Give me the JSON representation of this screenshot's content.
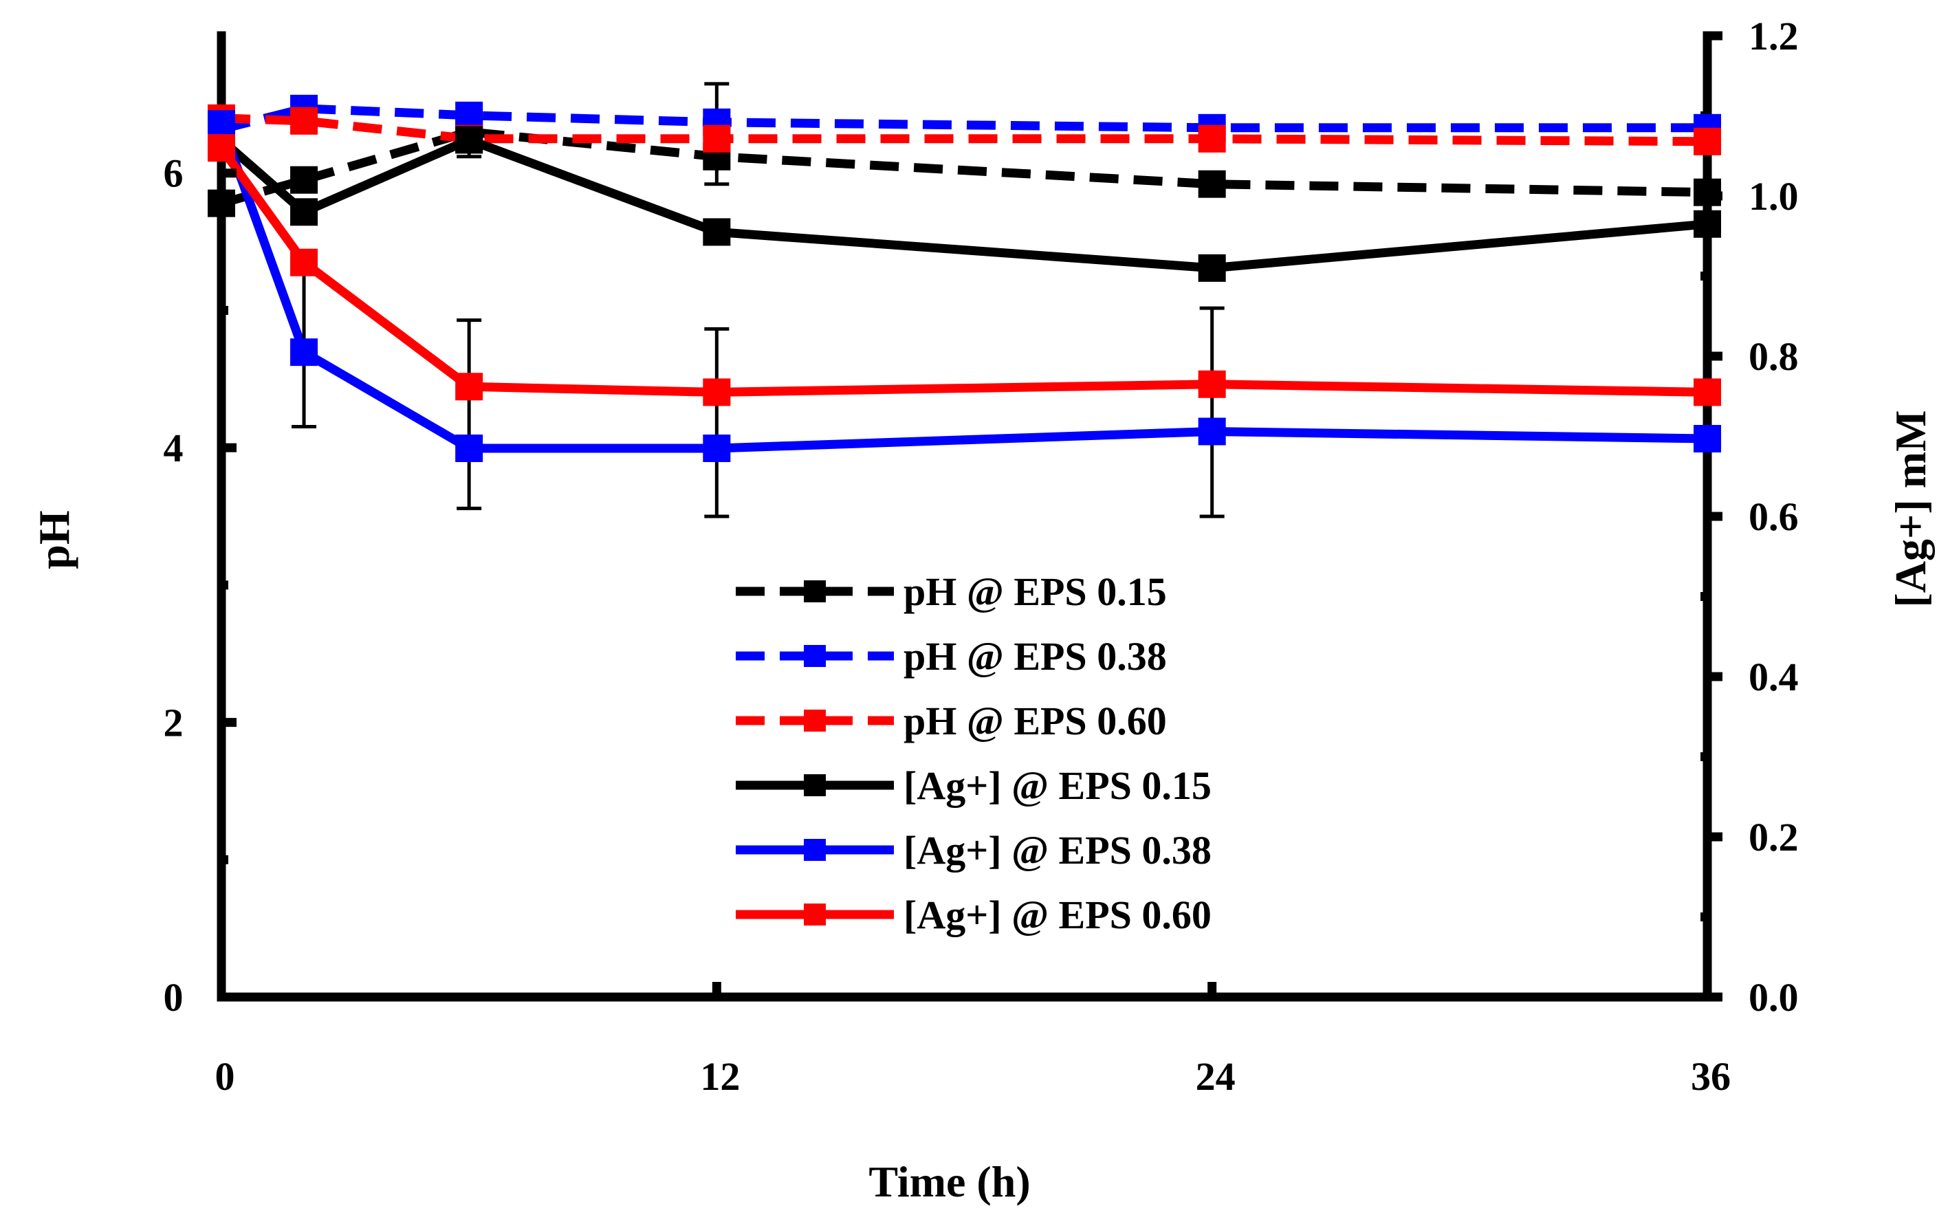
{
  "chart_data": {
    "type": "line",
    "xlabel": "Time (h)",
    "ylabel_left": "pH",
    "ylabel_right": "[Ag+] mM",
    "xlim": [
      0,
      36
    ],
    "ylim_left": [
      0,
      7
    ],
    "ylim_right": [
      0.0,
      1.2
    ],
    "x_ticks": [
      0,
      12,
      24,
      36
    ],
    "x_tick_labels": [
      "0",
      "12",
      "24",
      "36"
    ],
    "y_left_ticks": [
      0,
      2,
      4,
      6
    ],
    "y_left_tick_labels": [
      "0",
      "2",
      "4",
      "6"
    ],
    "y_right_ticks": [
      0.0,
      0.2,
      0.4,
      0.6,
      0.8,
      1.0,
      1.2
    ],
    "y_right_tick_labels": [
      "0.0",
      "0.2",
      "0.4",
      "0.6",
      "0.8",
      "1.0",
      "1.2"
    ],
    "grid": false,
    "legend_position": "center",
    "x": [
      0,
      2,
      6,
      12,
      24,
      36
    ],
    "series": [
      {
        "name": "pH @ EPS 0.15",
        "axis": "left",
        "color": "#000000",
        "dash": true,
        "values": [
          5.78,
          5.95,
          6.3,
          6.12,
          5.92,
          5.86
        ]
      },
      {
        "name": "pH @ EPS 0.38",
        "axis": "left",
        "color": "#0000ff",
        "dash": true,
        "values": [
          6.32,
          6.47,
          6.42,
          6.37,
          6.33,
          6.33
        ]
      },
      {
        "name": "pH @ EPS 0.60",
        "axis": "left",
        "color": "#ff0000",
        "dash": true,
        "values": [
          6.4,
          6.38,
          6.25,
          6.25,
          6.25,
          6.23
        ]
      },
      {
        "name": "[Ag+] @ EPS 0.15",
        "axis": "right",
        "color": "#000000",
        "dash": false,
        "values": [
          1.07,
          0.98,
          1.07,
          0.955,
          0.91,
          0.965
        ]
      },
      {
        "name": "[Ag+] @ EPS 0.38",
        "axis": "right",
        "color": "#0000ff",
        "dash": false,
        "values": [
          1.09,
          0.805,
          0.685,
          0.685,
          0.706,
          0.697
        ]
      },
      {
        "name": "[Ag+] @ EPS 0.60",
        "axis": "right",
        "color": "#ff0000",
        "dash": false,
        "values": [
          1.06,
          0.917,
          0.762,
          0.755,
          0.765,
          0.755
        ]
      }
    ],
    "error_bars": [
      {
        "x": 2,
        "axis": "right",
        "low": 0.712,
        "high": 0.92
      },
      {
        "x": 6,
        "axis": "left",
        "low": 6.12,
        "high": 6.42
      },
      {
        "x": 6,
        "axis": "right",
        "low": 0.61,
        "high": 0.845
      },
      {
        "x": 12,
        "axis": "left",
        "low": 5.92,
        "high": 6.65
      },
      {
        "x": 12,
        "axis": "right",
        "low": 0.6,
        "high": 0.834
      },
      {
        "x": 24,
        "axis": "right",
        "low": 0.6,
        "high": 0.86
      }
    ]
  }
}
